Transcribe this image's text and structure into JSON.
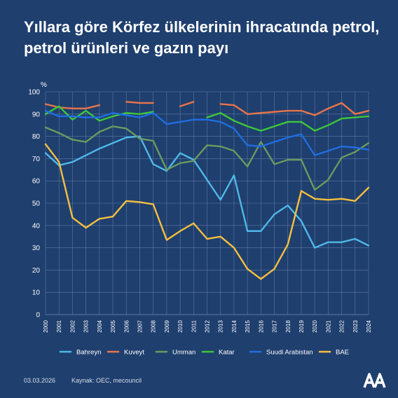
{
  "title": "Yıllara göre Körfez ülkelerinin ihracatında petrol, petrol ürünleri ve gazın payı",
  "footer": {
    "date": "03.03.2026",
    "source": "Kaynak: OEC, mecouncil"
  },
  "colors": {
    "background": "#1f3f6e",
    "grid": "#5f7aa3"
  },
  "logo_icon": "aa-agency-logo-icon",
  "chart_data": {
    "type": "line",
    "ylabel": "%",
    "ylim": [
      0,
      100
    ],
    "yticks": [
      0,
      10,
      20,
      30,
      40,
      50,
      60,
      70,
      80,
      90,
      100
    ],
    "x": [
      2000,
      2001,
      2002,
      2003,
      2004,
      2005,
      2006,
      2007,
      2008,
      2009,
      2010,
      2011,
      2012,
      2013,
      2014,
      2015,
      2016,
      2017,
      2018,
      2019,
      2020,
      2021,
      2022,
      2023,
      2024
    ],
    "grid": true,
    "legend": "bottom",
    "series": [
      {
        "name": "Bahreyn",
        "color": "#4fb8e8",
        "values": [
          72.5,
          67,
          68.5,
          71.5,
          74.5,
          77,
          79.5,
          80,
          67.5,
          64.5,
          72.5,
          69.5,
          60.5,
          51.5,
          62.5,
          37.5,
          37.5,
          45,
          49,
          42,
          30,
          32.5,
          32.5,
          34,
          31
        ]
      },
      {
        "name": "Kuveyt",
        "color": "#e8744a",
        "values": [
          94.5,
          93,
          92.5,
          92.5,
          94,
          null,
          95.5,
          95,
          95,
          null,
          93.5,
          95.5,
          null,
          94.5,
          94,
          90,
          90.5,
          91,
          91.5,
          91.5,
          89.5,
          92.5,
          95,
          90,
          91.5
        ]
      },
      {
        "name": "Umman",
        "color": "#6a9a5f",
        "values": [
          84,
          81.5,
          78.5,
          77.5,
          82,
          84.5,
          83.5,
          79,
          78,
          65,
          68,
          69,
          76,
          75.5,
          73.5,
          66.5,
          77.5,
          67.5,
          69.5,
          69.5,
          56,
          60.5,
          70.5,
          73,
          77
        ]
      },
      {
        "name": "Katar",
        "color": "#3ec63a",
        "values": [
          90,
          93.5,
          87.5,
          91.5,
          87,
          89,
          90.5,
          90,
          91,
          null,
          null,
          null,
          88.5,
          90.5,
          87,
          84.5,
          82.5,
          84.5,
          86.5,
          86.5,
          82.5,
          85,
          88,
          88.5,
          89
        ]
      },
      {
        "name": "Suudi Arabistan",
        "color": "#1f6ee0",
        "values": [
          91.5,
          89,
          89,
          88.5,
          88.5,
          90.5,
          89.5,
          88.5,
          90.5,
          85.5,
          86.5,
          87.5,
          87.5,
          86.5,
          83.5,
          76,
          75.5,
          77.5,
          79.5,
          81,
          71.5,
          73.5,
          75.5,
          75,
          74
        ]
      },
      {
        "name": "BAE",
        "color": "#f5bf3f",
        "values": [
          76.5,
          68.5,
          43.5,
          39,
          43,
          44,
          51,
          50.5,
          49.5,
          33.5,
          37.5,
          41,
          34,
          35,
          30,
          20.5,
          16,
          20.5,
          31.5,
          55.5,
          52,
          51.5,
          52,
          51,
          57
        ]
      }
    ]
  }
}
